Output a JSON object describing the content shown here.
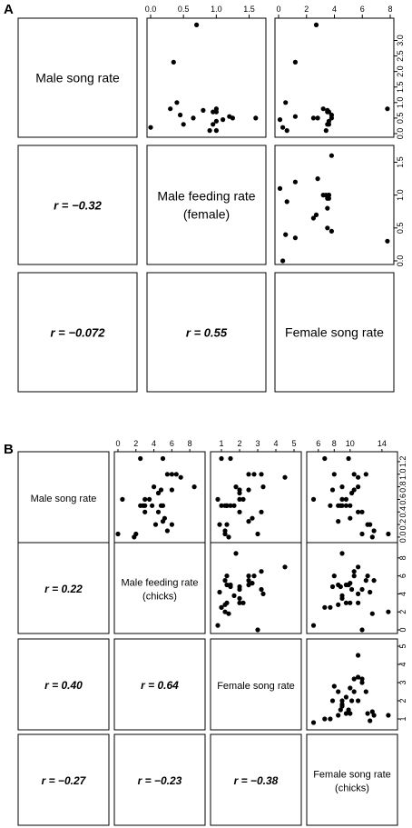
{
  "chart_data": [
    {
      "panel_label": "A",
      "type": "scatter",
      "variables": [
        "Male song rate",
        "Male feeding rate\n(female)",
        "Female song rate"
      ],
      "axis_ranges": [
        [
          0,
          3.6
        ],
        [
          0,
          1.7
        ],
        [
          0,
          8
        ]
      ],
      "tick_values": [
        [
          0.0,
          0.5,
          1.0,
          1.5,
          2.0,
          2.5,
          3.0
        ],
        [
          0.0,
          0.5,
          1.0,
          1.5
        ],
        [
          0,
          2,
          4,
          6,
          8
        ]
      ],
      "tick_labels": [
        [
          "0.0",
          "0.5",
          "1.0",
          "1.5",
          "2.0",
          "2.5",
          "3.0"
        ],
        [
          "0.0",
          "0.5",
          "1.0",
          "1.5"
        ],
        [
          "0",
          "2",
          "4",
          "6",
          "8"
        ]
      ],
      "correlations": [
        {
          "row": 1,
          "col": 0,
          "text": "r = −0.32"
        },
        {
          "row": 2,
          "col": 0,
          "text": "r = −0.072"
        },
        {
          "row": 2,
          "col": 1,
          "text": "r = 0.55"
        }
      ],
      "points": [
        [
          3.5,
          0.7,
          2.7
        ],
        [
          2.3,
          0.35,
          1.2
        ],
        [
          1.0,
          0.4,
          0.5
        ],
        [
          0.6,
          0.45,
          3.8
        ],
        [
          0.7,
          1.0,
          3.6
        ],
        [
          0.75,
          0.8,
          3.5
        ],
        [
          0.8,
          1.0,
          3.2
        ],
        [
          0.7,
          0.95,
          3.5
        ],
        [
          0.45,
          1.1,
          0.1
        ],
        [
          0.3,
          0.5,
          3.5
        ],
        [
          0.4,
          1.0,
          3.6
        ],
        [
          0.55,
          1.2,
          1.2
        ],
        [
          0.5,
          1.6,
          3.8
        ],
        [
          0.5,
          0.65,
          2.5
        ],
        [
          0.3,
          0.95,
          3.6
        ],
        [
          0.1,
          0.9,
          0.6
        ],
        [
          0.2,
          0.0,
          0.3
        ],
        [
          0.5,
          1.25,
          2.8
        ],
        [
          0.8,
          0.3,
          7.8
        ],
        [
          0.1,
          1.0,
          3.4
        ]
      ]
    },
    {
      "panel_label": "B",
      "type": "scatter",
      "variables": [
        "Male song rate",
        "Male feeding rate\n(chicks)",
        "Female song rate",
        "Female song rate\n(chicks)"
      ],
      "axis_ranges": [
        [
          -0.03,
          1.3
        ],
        [
          0,
          9.3
        ],
        [
          0.6,
          5.2
        ],
        [
          5,
          15.5
        ]
      ],
      "tick_values": [
        [
          0.0,
          0.2,
          0.4,
          0.6,
          0.8,
          1.0,
          1.2
        ],
        [
          0,
          2,
          4,
          6,
          8
        ],
        [
          1,
          2,
          3,
          4,
          5
        ],
        [
          6,
          8,
          10,
          14
        ]
      ],
      "tick_labels": [
        [
          "0.0",
          "0.2",
          "0.4",
          "0.6",
          "0.8",
          "1.0",
          "1.2"
        ],
        [
          "0",
          "2",
          "4",
          "6",
          "8"
        ],
        [
          "1",
          "2",
          "3",
          "4",
          "5"
        ],
        [
          "6",
          "8",
          "10",
          "14"
        ]
      ],
      "correlations": [
        {
          "row": 1,
          "col": 0,
          "text": "r = 0.22"
        },
        {
          "row": 2,
          "col": 0,
          "text": "r = 0.40"
        },
        {
          "row": 2,
          "col": 1,
          "text": "r = 0.64"
        },
        {
          "row": 3,
          "col": 0,
          "text": "r = −0.27"
        },
        {
          "row": 3,
          "col": 1,
          "text": "r = −0.23"
        },
        {
          "row": 3,
          "col": 2,
          "text": "r = −0.38"
        }
      ],
      "points": [
        [
          1.25,
          2.5,
          1.0,
          6.8
        ],
        [
          1.25,
          5.0,
          1.5,
          9.8
        ],
        [
          1.0,
          6.0,
          2.8,
          8.0
        ],
        [
          1.0,
          6.5,
          3.2,
          10.5
        ],
        [
          1.0,
          5.5,
          2.5,
          12.0
        ],
        [
          0.95,
          7.0,
          4.5,
          11.0
        ],
        [
          0.8,
          8.5,
          1.8,
          9.0
        ],
        [
          0.8,
          4.0,
          3.3,
          11.0
        ],
        [
          0.75,
          4.8,
          2.0,
          7.8
        ],
        [
          0.75,
          6.0,
          2.5,
          10.5
        ],
        [
          0.7,
          4.5,
          2.0,
          10.2
        ],
        [
          0.6,
          3.0,
          2.2,
          9.5
        ],
        [
          0.6,
          3.5,
          2.0,
          9.0
        ],
        [
          0.6,
          0.5,
          0.8,
          5.4
        ],
        [
          0.5,
          3.0,
          1.3,
          10.0
        ],
        [
          0.5,
          2.5,
          1.0,
          7.5
        ],
        [
          0.5,
          4.8,
          1.5,
          8.8
        ],
        [
          0.5,
          5.0,
          1.3,
          9.5
        ],
        [
          0.5,
          3.8,
          1.7,
          9.0
        ],
        [
          0.5,
          2.8,
          1.2,
          8.5
        ],
        [
          0.4,
          4.5,
          3.2,
          11.5
        ],
        [
          0.4,
          3.0,
          2.0,
          11.0
        ],
        [
          0.3,
          5.2,
          2.7,
          10.0
        ],
        [
          0.25,
          5.0,
          2.5,
          8.5
        ],
        [
          0.2,
          6.0,
          1.3,
          12.2
        ],
        [
          0.2,
          4.2,
          0.9,
          12.5
        ],
        [
          0.1,
          5.5,
          1.2,
          13.0
        ],
        [
          0.05,
          0.0,
          3.0,
          11.5
        ],
        [
          0.05,
          2.0,
          1.2,
          14.8
        ],
        [
          0.0,
          1.8,
          1.4,
          12.8
        ]
      ]
    }
  ]
}
